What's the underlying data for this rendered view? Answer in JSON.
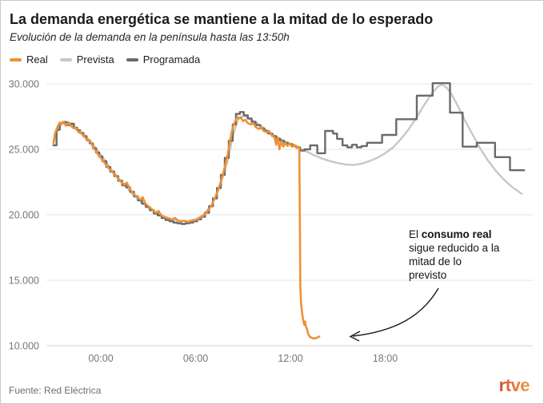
{
  "header": {
    "title": "La demanda energética se mantiene a la mitad de lo esperado",
    "subtitle": "Evolución de la demanda en la península hasta las 13:50h"
  },
  "legend": [
    {
      "label": "Real",
      "color": "#ED9237"
    },
    {
      "label": "Prevista",
      "color": "#C7C7C7"
    },
    {
      "label": "Programada",
      "color": "#6A6A6A"
    }
  ],
  "annotation": {
    "line1_regular": "El ",
    "line1_bold": "consumo real",
    "lines": [
      "sigue reducido a la",
      "mitad de lo",
      "previsto"
    ]
  },
  "footer": {
    "source": "Fuente: Red Eléctrica",
    "logo": "rtve"
  },
  "chart_data": {
    "type": "line",
    "unit": "MW",
    "grid_color": "#EAEAEA",
    "baseline_color": "#DCDCDC",
    "x_axis": {
      "hours_range": [
        -3.05,
        27.3
      ],
      "ticks": [
        {
          "hour": 0,
          "label": "00:00"
        },
        {
          "hour": 6,
          "label": "06:00"
        },
        {
          "hour": 12,
          "label": "12:00"
        },
        {
          "hour": 18,
          "label": "18:00"
        }
      ]
    },
    "y_axis": {
      "range": [
        10000,
        30000
      ],
      "ticks": [
        {
          "value": 30000,
          "label": "30.000"
        },
        {
          "value": 25000,
          "label": "25.000"
        },
        {
          "value": 20000,
          "label": "20.000"
        },
        {
          "value": 15000,
          "label": "15.000"
        },
        {
          "value": 10000,
          "label": "10.000"
        }
      ]
    },
    "series": [
      {
        "name": "Prevista",
        "color": "#C7C7C7",
        "style": "line",
        "width": 2.4,
        "points": [
          [
            -3.0,
            25600
          ],
          [
            -2.6,
            26850
          ],
          [
            -2.3,
            27150
          ],
          [
            -2.0,
            27050
          ],
          [
            -1.5,
            26550
          ],
          [
            -1.0,
            26050
          ],
          [
            -0.5,
            25350
          ],
          [
            0.0,
            24600
          ],
          [
            0.5,
            23750
          ],
          [
            1.0,
            22950
          ],
          [
            1.5,
            22300
          ],
          [
            2.0,
            21600
          ],
          [
            2.5,
            21050
          ],
          [
            3.0,
            20550
          ],
          [
            3.5,
            20150
          ],
          [
            4.0,
            19850
          ],
          [
            4.5,
            19650
          ],
          [
            5.0,
            19550
          ],
          [
            5.5,
            19500
          ],
          [
            6.0,
            19650
          ],
          [
            6.5,
            20000
          ],
          [
            7.0,
            20750
          ],
          [
            7.5,
            22000
          ],
          [
            8.0,
            24000
          ],
          [
            8.4,
            26200
          ],
          [
            8.7,
            27300
          ],
          [
            9.0,
            27550
          ],
          [
            9.3,
            27450
          ],
          [
            9.6,
            27200
          ],
          [
            10.0,
            26900
          ],
          [
            10.5,
            26450
          ],
          [
            11.0,
            26050
          ],
          [
            11.5,
            25700
          ],
          [
            12.0,
            25400
          ],
          [
            12.5,
            25150
          ],
          [
            13.0,
            24850
          ],
          [
            13.5,
            24550
          ],
          [
            14.0,
            24300
          ],
          [
            14.5,
            24100
          ],
          [
            15.0,
            23950
          ],
          [
            15.5,
            23850
          ],
          [
            16.0,
            23800
          ],
          [
            16.5,
            23900
          ],
          [
            17.0,
            24100
          ],
          [
            17.5,
            24350
          ],
          [
            18.0,
            24700
          ],
          [
            18.5,
            25150
          ],
          [
            19.0,
            25800
          ],
          [
            19.5,
            26550
          ],
          [
            20.0,
            27450
          ],
          [
            20.5,
            28450
          ],
          [
            21.0,
            29350
          ],
          [
            21.35,
            29800
          ],
          [
            21.6,
            29950
          ],
          [
            21.9,
            29700
          ],
          [
            22.2,
            29200
          ],
          [
            22.6,
            28300
          ],
          [
            23.0,
            27300
          ],
          [
            23.5,
            26200
          ],
          [
            24.0,
            25100
          ],
          [
            24.5,
            24150
          ],
          [
            25.0,
            23350
          ],
          [
            25.5,
            22700
          ],
          [
            26.0,
            22150
          ],
          [
            26.35,
            21850
          ],
          [
            26.65,
            21600
          ]
        ]
      },
      {
        "name": "Programada",
        "color": "#6A6A6A",
        "style": "step",
        "width": 2.4,
        "points": [
          [
            -3.0,
            25300
          ],
          [
            -2.8,
            26500
          ],
          [
            -2.6,
            27000
          ],
          [
            -2.35,
            27050
          ],
          [
            -2.1,
            26850
          ],
          [
            -1.9,
            26950
          ],
          [
            -1.7,
            26650
          ],
          [
            -1.5,
            26450
          ],
          [
            -1.3,
            26250
          ],
          [
            -1.1,
            26000
          ],
          [
            -0.9,
            25700
          ],
          [
            -0.7,
            25450
          ],
          [
            -0.5,
            25100
          ],
          [
            -0.3,
            24750
          ],
          [
            -0.1,
            24450
          ],
          [
            0.1,
            24100
          ],
          [
            0.35,
            23650
          ],
          [
            0.6,
            23300
          ],
          [
            0.85,
            22950
          ],
          [
            1.1,
            22600
          ],
          [
            1.35,
            22250
          ],
          [
            1.6,
            22100
          ],
          [
            1.85,
            21750
          ],
          [
            2.1,
            21400
          ],
          [
            2.35,
            21100
          ],
          [
            2.6,
            20850
          ],
          [
            2.85,
            20600
          ],
          [
            3.1,
            20350
          ],
          [
            3.35,
            20100
          ],
          [
            3.6,
            19950
          ],
          [
            3.85,
            19750
          ],
          [
            4.1,
            19600
          ],
          [
            4.35,
            19500
          ],
          [
            4.6,
            19400
          ],
          [
            4.85,
            19350
          ],
          [
            5.1,
            19300
          ],
          [
            5.35,
            19350
          ],
          [
            5.6,
            19400
          ],
          [
            5.85,
            19500
          ],
          [
            6.1,
            19650
          ],
          [
            6.35,
            19850
          ],
          [
            6.6,
            20150
          ],
          [
            6.85,
            20650
          ],
          [
            7.1,
            21250
          ],
          [
            7.35,
            22050
          ],
          [
            7.6,
            23050
          ],
          [
            7.85,
            24350
          ],
          [
            8.1,
            25650
          ],
          [
            8.35,
            26900
          ],
          [
            8.55,
            27700
          ],
          [
            8.8,
            27850
          ],
          [
            9.05,
            27600
          ],
          [
            9.3,
            27350
          ],
          [
            9.55,
            27100
          ],
          [
            9.8,
            26850
          ],
          [
            10.1,
            26600
          ],
          [
            10.35,
            26400
          ],
          [
            10.6,
            26200
          ],
          [
            10.85,
            26000
          ],
          [
            11.1,
            25800
          ],
          [
            11.35,
            25650
          ],
          [
            11.6,
            25500
          ],
          [
            11.85,
            25400
          ],
          [
            12.1,
            25250
          ],
          [
            12.35,
            25150
          ],
          [
            12.6,
            24900
          ],
          [
            12.9,
            25000
          ],
          [
            13.25,
            25300
          ],
          [
            13.7,
            24700
          ],
          [
            14.2,
            26400
          ],
          [
            14.7,
            26200
          ],
          [
            14.95,
            25800
          ],
          [
            15.3,
            25300
          ],
          [
            15.6,
            25150
          ],
          [
            15.9,
            25350
          ],
          [
            16.2,
            25150
          ],
          [
            16.5,
            25250
          ],
          [
            16.85,
            25500
          ],
          [
            17.8,
            26100
          ],
          [
            18.7,
            27300
          ],
          [
            20.0,
            29100
          ],
          [
            21.0,
            30050
          ],
          [
            22.1,
            27800
          ],
          [
            22.9,
            25200
          ],
          [
            23.8,
            25500
          ],
          [
            24.95,
            24400
          ],
          [
            25.9,
            23400
          ],
          [
            26.8,
            23400
          ]
        ]
      },
      {
        "name": "Real",
        "color": "#ED9237",
        "style": "line",
        "width": 2.6,
        "points": [
          [
            -3.0,
            25400
          ],
          [
            -2.9,
            26200
          ],
          [
            -2.75,
            26700
          ],
          [
            -2.6,
            27050
          ],
          [
            -2.5,
            26900
          ],
          [
            -2.4,
            27100
          ],
          [
            -2.3,
            26950
          ],
          [
            -2.2,
            26800
          ],
          [
            -2.1,
            26950
          ],
          [
            -2.0,
            27000
          ],
          [
            -1.9,
            26800
          ],
          [
            -1.8,
            26700
          ],
          [
            -1.7,
            26600
          ],
          [
            -1.6,
            26650
          ],
          [
            -1.5,
            26450
          ],
          [
            -1.4,
            26300
          ],
          [
            -1.3,
            26350
          ],
          [
            -1.2,
            26150
          ],
          [
            -1.1,
            26050
          ],
          [
            -1.0,
            25900
          ],
          [
            -0.9,
            25750
          ],
          [
            -0.8,
            25650
          ],
          [
            -0.7,
            25700
          ],
          [
            -0.6,
            25450
          ],
          [
            -0.5,
            25200
          ],
          [
            -0.4,
            25000
          ],
          [
            -0.3,
            24850
          ],
          [
            -0.2,
            24650
          ],
          [
            -0.1,
            24500
          ],
          [
            0.0,
            24350
          ],
          [
            0.25,
            23950
          ],
          [
            0.5,
            23550
          ],
          [
            0.75,
            23250
          ],
          [
            1.0,
            22900
          ],
          [
            1.25,
            22550
          ],
          [
            1.5,
            22300
          ],
          [
            1.65,
            22450
          ],
          [
            1.8,
            22050
          ],
          [
            2.0,
            21700
          ],
          [
            2.25,
            21400
          ],
          [
            2.5,
            21150
          ],
          [
            2.65,
            21350
          ],
          [
            2.8,
            20900
          ],
          [
            3.0,
            20650
          ],
          [
            3.25,
            20400
          ],
          [
            3.5,
            20150
          ],
          [
            3.65,
            20300
          ],
          [
            3.8,
            20000
          ],
          [
            4.0,
            19850
          ],
          [
            4.25,
            19750
          ],
          [
            4.5,
            19650
          ],
          [
            4.7,
            19750
          ],
          [
            4.9,
            19550
          ],
          [
            5.1,
            19500
          ],
          [
            5.3,
            19550
          ],
          [
            5.5,
            19450
          ],
          [
            5.75,
            19550
          ],
          [
            6.0,
            19600
          ],
          [
            6.25,
            19750
          ],
          [
            6.5,
            19950
          ],
          [
            6.75,
            20250
          ],
          [
            7.0,
            20700
          ],
          [
            7.25,
            21350
          ],
          [
            7.5,
            22150
          ],
          [
            7.75,
            23200
          ],
          [
            8.0,
            24400
          ],
          [
            8.15,
            25400
          ],
          [
            8.3,
            26400
          ],
          [
            8.45,
            27000
          ],
          [
            8.55,
            27250
          ],
          [
            8.65,
            27500
          ],
          [
            8.75,
            27350
          ],
          [
            8.85,
            27450
          ],
          [
            9.0,
            27150
          ],
          [
            9.15,
            27250
          ],
          [
            9.3,
            27000
          ],
          [
            9.5,
            26900
          ],
          [
            9.65,
            27000
          ],
          [
            9.8,
            26700
          ],
          [
            10.0,
            26550
          ],
          [
            10.15,
            26700
          ],
          [
            10.3,
            26400
          ],
          [
            10.5,
            26300
          ],
          [
            10.65,
            26400
          ],
          [
            10.8,
            26100
          ],
          [
            11.0,
            25900
          ],
          [
            11.1,
            25350
          ],
          [
            11.2,
            25900
          ],
          [
            11.3,
            25000
          ],
          [
            11.42,
            25600
          ],
          [
            11.55,
            25200
          ],
          [
            11.68,
            25500
          ],
          [
            11.8,
            25250
          ],
          [
            11.95,
            25450
          ],
          [
            12.1,
            25200
          ],
          [
            12.25,
            25350
          ],
          [
            12.4,
            25100
          ],
          [
            12.5,
            25200
          ],
          [
            12.56,
            25100
          ],
          [
            12.6,
            19000
          ],
          [
            12.63,
            14500
          ],
          [
            12.68,
            13200
          ],
          [
            12.75,
            12400
          ],
          [
            12.82,
            11900
          ],
          [
            12.88,
            11600
          ],
          [
            12.93,
            11850
          ],
          [
            12.98,
            11450
          ],
          [
            13.05,
            11300
          ],
          [
            13.12,
            10900
          ],
          [
            13.22,
            10700
          ],
          [
            13.35,
            10600
          ],
          [
            13.5,
            10550
          ],
          [
            13.65,
            10600
          ],
          [
            13.83,
            10700
          ]
        ]
      }
    ]
  }
}
